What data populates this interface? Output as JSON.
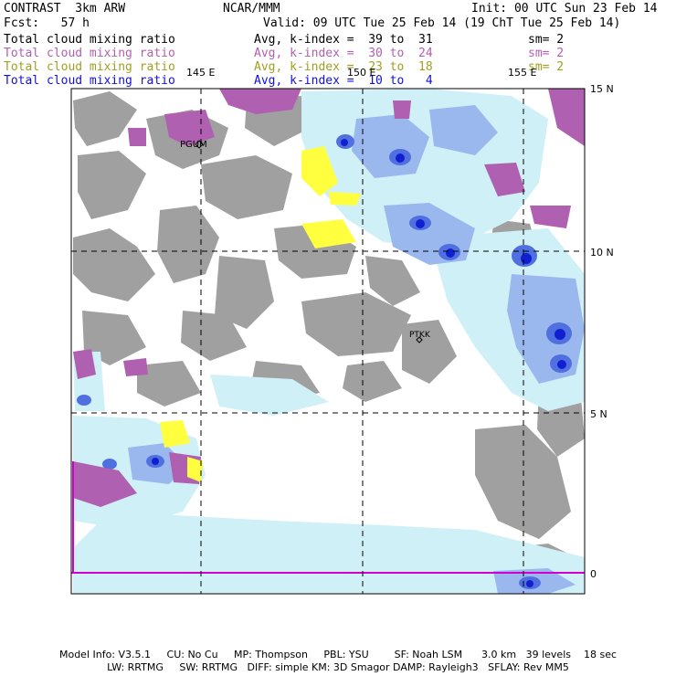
{
  "header": {
    "model": "CONTRAST  3km ARW",
    "org": "NCAR/MMM",
    "init": "Init: 00 UTC Sun 23 Feb 14",
    "fcst_label": "Fcst:   57 h",
    "valid": "Valid: 09 UTC Tue 25 Feb 14 (19 ChT Tue 25 Feb 14)"
  },
  "legend": [
    {
      "field": "Total cloud mixing ratio",
      "range": "Avg, k-index =  39 to  31",
      "sm": "sm= 2",
      "color": "#000000"
    },
    {
      "field": "Total cloud mixing ratio",
      "range": "Avg, k-index =  30 to  24",
      "sm": "sm= 2",
      "color": "#b060b0"
    },
    {
      "field": "Total cloud mixing ratio",
      "range": "Avg, k-index =  23 to  18",
      "sm": "sm= 2",
      "color": "#a0a020"
    },
    {
      "field": "Total cloud mixing ratio",
      "range": "Avg, k-index =  10 to   4",
      "sm": "sm= 2",
      "color": "#1010e0"
    }
  ],
  "map": {
    "lon_labels": [
      "145 E",
      "150 E",
      "155 E"
    ],
    "lat_labels": [
      "15 N",
      "10 N",
      "5 N",
      "0"
    ],
    "stations": [
      "PGUM",
      "PTKK"
    ]
  },
  "footer": {
    "line1": "Model Info: V3.5.1     CU: No Cu     MP: Thompson     PBL: YSU        SF: Noah LSM      3.0 km   39 levels    18 sec",
    "line2": "LW: RRTMG     SW: RRTMG   DIFF: simple KM: 3D Smagor DAMP: Rayleigh3   SFLAY: Rev MM5"
  },
  "colors": {
    "gray_cloud": "#a0a0a0",
    "purple_cloud": "#b060b0",
    "yellow_cloud": "#ffff40",
    "light_blue": "#d0f0f8",
    "mid_blue": "#9ab8ee",
    "blue": "#5070e0",
    "dark_blue": "#1020d0"
  }
}
